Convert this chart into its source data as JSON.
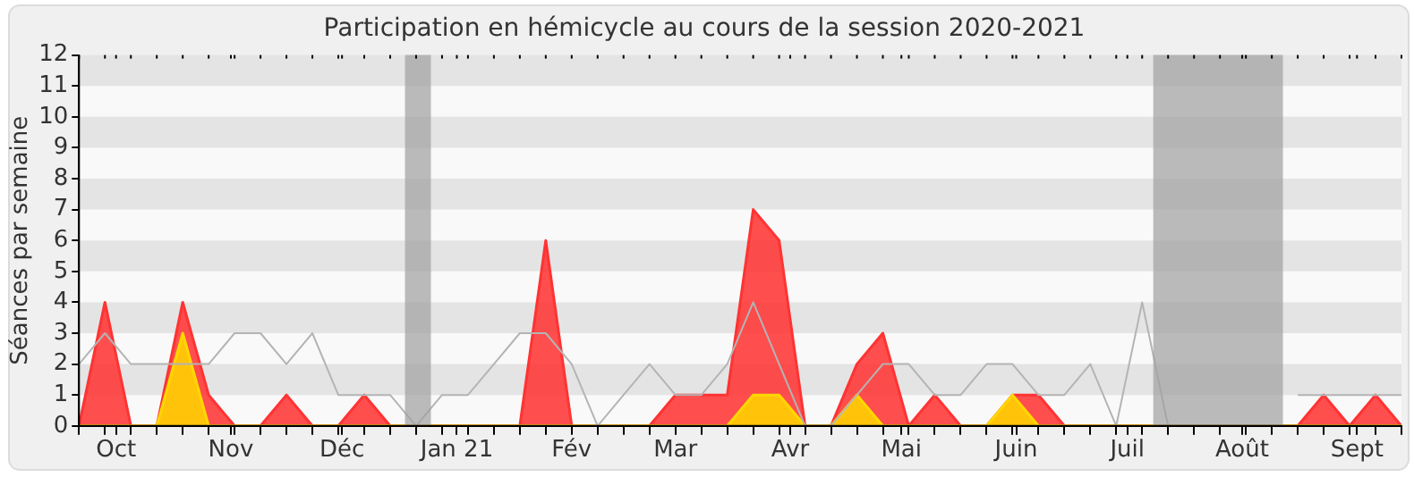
{
  "chart_data": {
    "type": "area",
    "title": "Participation en hémicycle au cours de la session 2020-2021",
    "ylabel": "Séances par semaine",
    "x": [
      "2020-09-21",
      "2020-09-28",
      "2020-10-05",
      "2020-10-12",
      "2020-10-19",
      "2020-10-26",
      "2020-11-02",
      "2020-11-09",
      "2020-11-16",
      "2020-11-23",
      "2020-11-30",
      "2020-12-07",
      "2020-12-14",
      "2020-12-21",
      "2020-12-28",
      "2021-01-04",
      "2021-01-11",
      "2021-01-18",
      "2021-01-25",
      "2021-02-01",
      "2021-02-08",
      "2021-02-15",
      "2021-02-22",
      "2021-03-01",
      "2021-03-08",
      "2021-03-15",
      "2021-03-22",
      "2021-03-29",
      "2021-04-05",
      "2021-04-12",
      "2021-04-19",
      "2021-04-26",
      "2021-05-03",
      "2021-05-10",
      "2021-05-17",
      "2021-05-24",
      "2021-05-31",
      "2021-06-07",
      "2021-06-14",
      "2021-06-21",
      "2021-06-28",
      "2021-07-05",
      "2021-07-12",
      "2021-07-19",
      "2021-07-26",
      "2021-08-02",
      "2021-08-09",
      "2021-08-16",
      "2021-08-23",
      "2021-08-30",
      "2021-09-06",
      "2021-09-13"
    ],
    "series": [
      {
        "type": "area",
        "color": "#ff3333",
        "values": [
          0,
          4,
          0,
          0,
          4,
          1,
          0,
          0,
          1,
          0,
          0,
          1,
          0,
          0,
          0,
          0,
          0,
          0,
          6,
          0,
          0,
          0,
          0,
          1,
          1,
          1,
          7,
          6,
          0,
          0,
          2,
          3,
          0,
          1,
          0,
          0,
          1,
          1,
          0,
          0,
          0,
          0,
          0,
          0,
          0,
          0,
          0,
          0,
          1,
          0,
          1,
          0
        ]
      },
      {
        "type": "area",
        "color": "#ffd700",
        "values": [
          0,
          0,
          0,
          0,
          3,
          0,
          0,
          0,
          0,
          0,
          0,
          0,
          0,
          0,
          0,
          0,
          0,
          0,
          0,
          0,
          0,
          0,
          0,
          0,
          0,
          0,
          1,
          1,
          0,
          0,
          1,
          0,
          0,
          0,
          0,
          0,
          1,
          0,
          0,
          0,
          0,
          0,
          0,
          0,
          0,
          0,
          0,
          0,
          0,
          0,
          0,
          0
        ]
      },
      {
        "type": "line",
        "color": "#b4b4b4",
        "values": [
          2,
          3,
          2,
          2,
          2,
          2,
          3,
          3,
          2,
          3,
          1,
          1,
          1,
          0,
          1,
          1,
          2,
          3,
          3,
          2,
          0,
          1,
          2,
          1,
          1,
          2,
          4,
          2,
          0,
          0,
          1,
          2,
          2,
          1,
          1,
          2,
          2,
          1,
          1,
          2,
          0,
          4,
          0,
          null,
          null,
          null,
          null,
          1,
          1,
          1,
          1,
          1
        ]
      }
    ],
    "xlim": [
      "2020-09-21",
      "2021-09-13"
    ],
    "xticks": [
      {
        "value": "2020-09-21",
        "label": null
      },
      {
        "value": "2020-09-28",
        "label": null
      },
      {
        "value": "2020-10-01",
        "label": "Oct"
      },
      {
        "value": "2020-10-05",
        "label": null
      },
      {
        "value": "2020-10-12",
        "label": null
      },
      {
        "value": "2020-10-19",
        "label": null
      },
      {
        "value": "2020-10-26",
        "label": null
      },
      {
        "value": "2020-11-01",
        "label": "Nov"
      },
      {
        "value": "2020-11-02",
        "label": null
      },
      {
        "value": "2020-11-09",
        "label": null
      },
      {
        "value": "2020-11-16",
        "label": null
      },
      {
        "value": "2020-11-23",
        "label": null
      },
      {
        "value": "2020-11-30",
        "label": null
      },
      {
        "value": "2020-12-01",
        "label": "Déc"
      },
      {
        "value": "2020-12-07",
        "label": null
      },
      {
        "value": "2020-12-14",
        "label": null
      },
      {
        "value": "2020-12-21",
        "label": null
      },
      {
        "value": "2020-12-28",
        "label": null
      },
      {
        "value": "2021-01-01",
        "label": "Jan 21"
      },
      {
        "value": "2021-01-04",
        "label": null
      },
      {
        "value": "2021-01-11",
        "label": null
      },
      {
        "value": "2021-01-18",
        "label": null
      },
      {
        "value": "2021-01-25",
        "label": null
      },
      {
        "value": "2021-02-01",
        "label": "Fév"
      },
      {
        "value": "2021-02-08",
        "label": null
      },
      {
        "value": "2021-02-15",
        "label": null
      },
      {
        "value": "2021-02-22",
        "label": null
      },
      {
        "value": "2021-03-01",
        "label": "Mar"
      },
      {
        "value": "2021-03-08",
        "label": null
      },
      {
        "value": "2021-03-15",
        "label": null
      },
      {
        "value": "2021-03-22",
        "label": null
      },
      {
        "value": "2021-03-29",
        "label": null
      },
      {
        "value": "2021-04-01",
        "label": "Avr"
      },
      {
        "value": "2021-04-05",
        "label": null
      },
      {
        "value": "2021-04-12",
        "label": null
      },
      {
        "value": "2021-04-19",
        "label": null
      },
      {
        "value": "2021-04-26",
        "label": null
      },
      {
        "value": "2021-05-01",
        "label": "Mai"
      },
      {
        "value": "2021-05-03",
        "label": null
      },
      {
        "value": "2021-05-10",
        "label": null
      },
      {
        "value": "2021-05-17",
        "label": null
      },
      {
        "value": "2021-05-24",
        "label": null
      },
      {
        "value": "2021-05-31",
        "label": null
      },
      {
        "value": "2021-06-01",
        "label": "Juin"
      },
      {
        "value": "2021-06-07",
        "label": null
      },
      {
        "value": "2021-06-14",
        "label": null
      },
      {
        "value": "2021-06-21",
        "label": null
      },
      {
        "value": "2021-06-28",
        "label": null
      },
      {
        "value": "2021-07-01",
        "label": "Juil"
      },
      {
        "value": "2021-07-05",
        "label": null
      },
      {
        "value": "2021-07-12",
        "label": null
      },
      {
        "value": "2021-07-19",
        "label": null
      },
      {
        "value": "2021-07-26",
        "label": null
      },
      {
        "value": "2021-08-01",
        "label": "Août"
      },
      {
        "value": "2021-08-02",
        "label": null
      },
      {
        "value": "2021-08-09",
        "label": null
      },
      {
        "value": "2021-08-16",
        "label": null
      },
      {
        "value": "2021-08-23",
        "label": null
      },
      {
        "value": "2021-08-30",
        "label": null
      },
      {
        "value": "2021-09-01",
        "label": "Sept"
      },
      {
        "value": "2021-09-06",
        "label": null
      },
      {
        "value": "2021-09-13",
        "label": null
      }
    ],
    "ylim": [
      0,
      12
    ],
    "yticks": [
      0,
      1,
      2,
      3,
      4,
      5,
      6,
      7,
      8,
      9,
      10,
      11,
      12
    ],
    "bands": [
      {
        "axis": "y",
        "from": 1,
        "to": 2,
        "color": "#e4e4e4"
      },
      {
        "axis": "y",
        "from": 3,
        "to": 4,
        "color": "#e4e4e4"
      },
      {
        "axis": "y",
        "from": 5,
        "to": 6,
        "color": "#e4e4e4"
      },
      {
        "axis": "y",
        "from": 7,
        "to": 8,
        "color": "#e4e4e4"
      },
      {
        "axis": "y",
        "from": 9,
        "to": 10,
        "color": "#e4e4e4"
      },
      {
        "axis": "y",
        "from": 11,
        "to": 12,
        "color": "#e4e4e4"
      },
      {
        "axis": "x",
        "from": "2020-12-18",
        "to": "2020-12-25",
        "color": "#a0a0a0"
      },
      {
        "axis": "x",
        "from": "2021-07-08",
        "to": "2021-08-12",
        "color": "#a0a0a0"
      }
    ]
  }
}
